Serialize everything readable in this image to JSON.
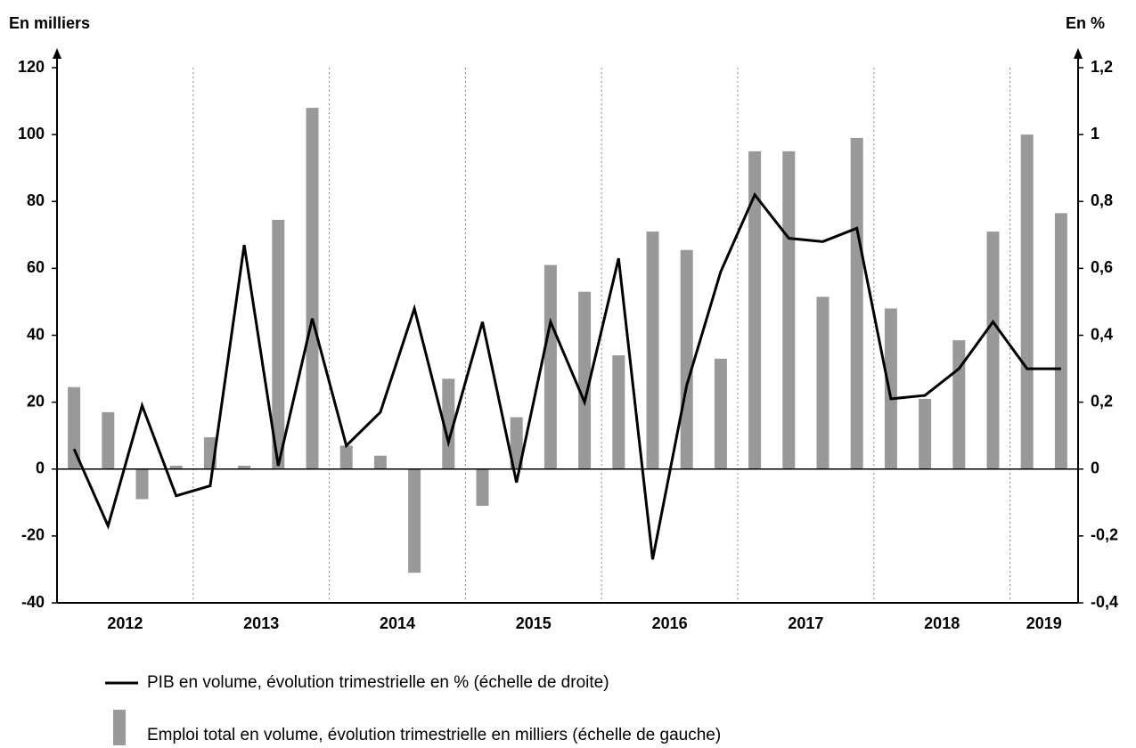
{
  "chart_data": {
    "type": "bar",
    "y_label": "En milliers",
    "y2_label": "En %",
    "categories": [
      "2012",
      null,
      null,
      null,
      "2013",
      null,
      null,
      null,
      "2014",
      null,
      null,
      null,
      "2015",
      null,
      null,
      null,
      "2016",
      null,
      null,
      null,
      "2017",
      null,
      null,
      null,
      "2018",
      null,
      null,
      null,
      "2019",
      null
    ],
    "series": [
      {
        "name": "PIB en volume, évolution trimestrielle en % (échelle de droite)",
        "type": "line",
        "axis": "y2",
        "color": "#000000",
        "values": [
          0.06,
          -0.17,
          0.19,
          -0.08,
          -0.05,
          0.67,
          0.01,
          0.45,
          0.07,
          0.17,
          0.48,
          0.08,
          0.44,
          -0.04,
          0.44,
          0.2,
          0.63,
          -0.27,
          0.25,
          0.59,
          0.82,
          0.69,
          0.68,
          0.72,
          0.21,
          0.22,
          0.3,
          0.44,
          0.3,
          0.3
        ]
      },
      {
        "name": "Emploi total en volume, évolution trimestrielle en milliers (échelle de gauche)",
        "type": "bar",
        "axis": "y",
        "color": "#999999",
        "values": [
          24.5,
          17,
          -9,
          1,
          9.5,
          1,
          74.5,
          108,
          7,
          4,
          -31,
          27,
          -11,
          15.5,
          61,
          53,
          34,
          71,
          65.5,
          33,
          95,
          95,
          51.5,
          99,
          48,
          21,
          38.5,
          71,
          100,
          76.5
        ]
      }
    ],
    "ylim": [
      -40,
      120
    ],
    "yticks": [
      -40,
      -20,
      0,
      20,
      40,
      60,
      80,
      100,
      120
    ],
    "y2lim": [
      -0.4,
      1.2
    ],
    "y2ticks": [
      {
        "value": -0.4,
        "label": "-0,4"
      },
      {
        "value": -0.2,
        "label": "-0,2"
      },
      0,
      {
        "value": 0.2,
        "label": "0,2"
      },
      {
        "value": 0.4,
        "label": "0,4"
      },
      {
        "value": 0.6,
        "label": "0,6"
      },
      {
        "value": 0.8,
        "label": "0,8"
      },
      1,
      {
        "value": 1.2,
        "label": "1,2"
      }
    ]
  }
}
